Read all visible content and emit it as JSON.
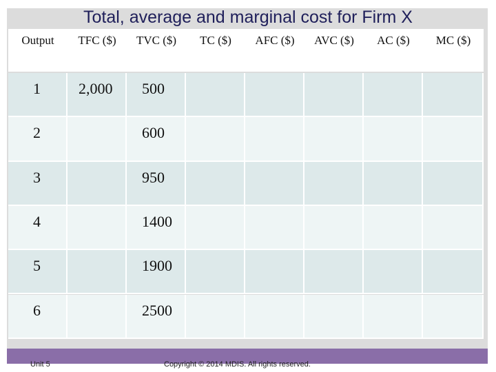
{
  "title": "Total, average and marginal cost for Firm X",
  "headers": [
    "Output",
    "TFC ($)",
    "TVC ($)",
    "TC ($)",
    "AFC ($)",
    "AVC ($)",
    "AC ($)",
    "MC ($)"
  ],
  "rows": [
    {
      "output": "1",
      "tfc": "2,000",
      "tvc": "500"
    },
    {
      "output": "2",
      "tfc": "",
      "tvc": "600"
    },
    {
      "output": "3",
      "tfc": "",
      "tvc": "950"
    },
    {
      "output": "4",
      "tfc": "",
      "tvc": "1400"
    },
    {
      "output": "5",
      "tfc": "",
      "tvc": "1900"
    },
    {
      "output": "6",
      "tfc": "",
      "tvc": "2500"
    }
  ],
  "footer": {
    "left": "Unit 5",
    "center": "Copyright © 2014 MDIS. All rights reserved."
  }
}
